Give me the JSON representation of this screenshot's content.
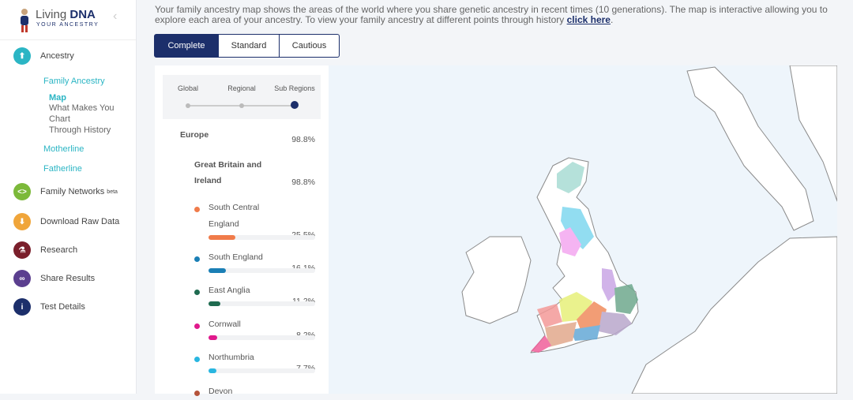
{
  "sidebar": {
    "logo_title": "Living",
    "logo_title_bold": "DNA",
    "logo_subtitle": "YOUR ANCESTRY",
    "collapse": "‹",
    "nav": [
      {
        "label": "Ancestry",
        "color": "#2bb5c4",
        "glyph": "⬆"
      },
      {
        "label": "Family Networks",
        "sup": "beta",
        "color": "#7cb93a",
        "glyph": "<>"
      },
      {
        "label": "Download Raw Data",
        "color": "#f0a53a",
        "glyph": "⬇"
      },
      {
        "label": "Research",
        "color": "#7a1f2b",
        "glyph": "⚗"
      },
      {
        "label": "Share Results",
        "color": "#5b3f8f",
        "glyph": "∞"
      },
      {
        "label": "Test Details",
        "color": "#1c2f6b",
        "glyph": "i"
      }
    ],
    "subnav": {
      "family_ancestry": "Family Ancestry",
      "map": "Map",
      "what_makes_you": "What Makes You",
      "chart": "Chart",
      "through_history": "Through History",
      "motherline": "Motherline",
      "fatherline": "Fatherline"
    }
  },
  "intro": {
    "text": "Your family ancestry map shows the areas of the world where you share genetic ancestry in recent times (10 generations). The map is interactive allowing you to explore each area of your ancestry. To view your family ancestry at different points through history ",
    "link": "click here",
    "text_end": "."
  },
  "tabs": [
    "Complete",
    "Standard",
    "Cautious"
  ],
  "slider": {
    "labels": [
      "Global",
      "Regional",
      "Sub Regions"
    ]
  },
  "ancestry": {
    "top": {
      "name": "Europe",
      "percent": "98.8%"
    },
    "region": {
      "name": "Great Britain and Ireland",
      "percent": "98.8%"
    },
    "subregions": [
      {
        "name": "South Central England",
        "color": "#f07b4a",
        "percent": {
          "value": 25.5,
          "label": "25.5%"
        }
      },
      {
        "name": "South England",
        "color": "#1a7fb5",
        "percent": {
          "value": 16.1,
          "label": "16.1%"
        }
      },
      {
        "name": "East Anglia",
        "color": "#1f6b50",
        "percent": {
          "value": 11.2,
          "label": "11.2%"
        }
      },
      {
        "name": "Cornwall",
        "color": "#e0198c",
        "percent": {
          "value": 8.2,
          "label": "8.2%"
        }
      },
      {
        "name": "Northumbria",
        "color": "#29b6e0",
        "percent": {
          "value": 7.7,
          "label": "7.7%"
        }
      },
      {
        "name": "Devon",
        "color": "#b5533a",
        "percent": {
          "value": null,
          "label": null
        }
      }
    ]
  }
}
